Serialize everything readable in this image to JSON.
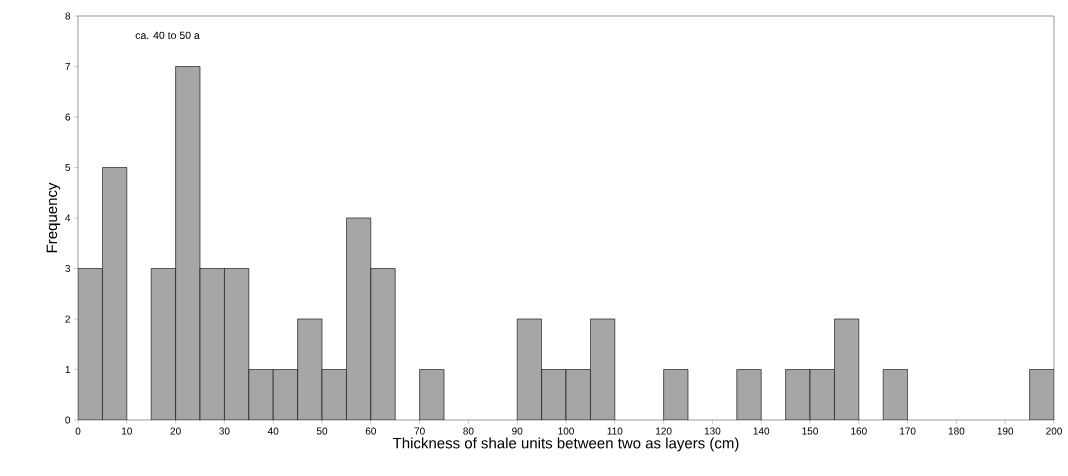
{
  "chart_data": {
    "type": "histogram",
    "xlabel": "Thickness of shale units between two as layers (cm)",
    "ylabel": "Frequency",
    "annotations": [
      "ca. 40 to 50 a"
    ],
    "bins": [
      0,
      5,
      10,
      15,
      20,
      25,
      30,
      35,
      40,
      45,
      50,
      55,
      60,
      65,
      70,
      75,
      80,
      85,
      90,
      95,
      100,
      105,
      110,
      115,
      120,
      125,
      130,
      135,
      140,
      145,
      150,
      155,
      160,
      165,
      170,
      175,
      180,
      185,
      190,
      195,
      200
    ],
    "values": [
      3,
      5,
      0,
      3,
      7,
      3,
      3,
      1,
      1,
      2,
      1,
      4,
      3,
      0,
      1,
      0,
      0,
      0,
      2,
      1,
      1,
      2,
      0,
      0,
      1,
      0,
      0,
      1,
      0,
      1,
      1,
      2,
      0,
      1,
      0,
      0,
      0,
      0,
      0,
      1
    ],
    "color": "#a6a6a6",
    "xlim": [
      0,
      200
    ],
    "ylim": [
      0,
      8
    ],
    "xticks": [
      0,
      10,
      20,
      30,
      40,
      50,
      60,
      70,
      80,
      90,
      100,
      110,
      120,
      130,
      140,
      150,
      160,
      170,
      180,
      190,
      200
    ],
    "yticks": [
      0,
      1,
      2,
      3,
      4,
      5,
      6,
      7,
      8
    ],
    "grid": false
  }
}
